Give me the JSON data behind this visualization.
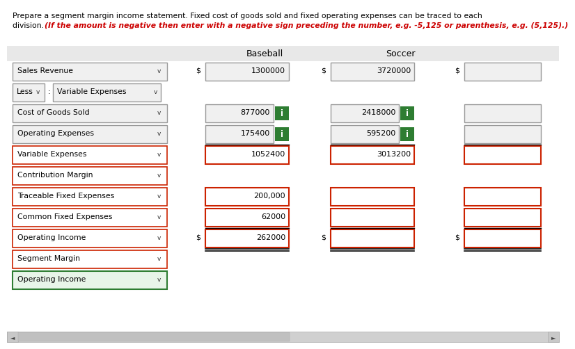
{
  "title_line1": "Prepare a segment margin income statement. Fixed cost of goods sold and fixed operating expenses can be traced to each",
  "title_line2_normal": "division. ",
  "title_line2_italic": "(If the amount is negative then enter with a negative sign preceding the number, e.g. -5,125 or parenthesis, e.g. (5,125).)",
  "col_headers": [
    "Baseball",
    "Soccer"
  ],
  "rows": [
    {
      "label": "Sales Revenue",
      "type": "normal",
      "border": "gray",
      "bg": "#f0f0f0",
      "dollar_baseball": true,
      "val_baseball": "1300000",
      "show_baseball": true,
      "dollar_soccer": true,
      "val_soccer": "3720000",
      "show_soccer": true,
      "dollar_total": true,
      "val_total": "",
      "show_total": true,
      "green_i_baseball": false,
      "green_i_soccer": false,
      "red_border_val": false
    },
    {
      "label": "Less",
      "type": "less_variable",
      "border": "gray",
      "bg": "#f0f0f0",
      "dollar_baseball": false,
      "val_baseball": "",
      "show_baseball": false,
      "dollar_soccer": false,
      "val_soccer": "",
      "show_soccer": false,
      "dollar_total": false,
      "val_total": "",
      "show_total": false,
      "green_i_baseball": false,
      "green_i_soccer": false,
      "red_border_val": false
    },
    {
      "label": "Cost of Goods Sold",
      "type": "normal",
      "border": "gray",
      "bg": "#f0f0f0",
      "dollar_baseball": false,
      "val_baseball": "877000",
      "show_baseball": true,
      "dollar_soccer": false,
      "val_soccer": "2418000",
      "show_soccer": true,
      "dollar_total": false,
      "val_total": "",
      "show_total": true,
      "green_i_baseball": true,
      "green_i_soccer": true,
      "red_border_val": false
    },
    {
      "label": "Operating Expenses",
      "type": "normal",
      "border": "gray",
      "bg": "#f0f0f0",
      "dollar_baseball": false,
      "val_baseball": "175400",
      "show_baseball": true,
      "dollar_soccer": false,
      "val_soccer": "595200",
      "show_soccer": true,
      "dollar_total": false,
      "val_total": "",
      "show_total": true,
      "green_i_baseball": true,
      "green_i_soccer": true,
      "red_border_val": false,
      "underline_below": true
    },
    {
      "label": "Variable Expenses",
      "type": "normal",
      "border": "red",
      "bg": "white",
      "dollar_baseball": false,
      "val_baseball": "1052400",
      "show_baseball": true,
      "dollar_soccer": false,
      "val_soccer": "3013200",
      "show_soccer": true,
      "dollar_total": false,
      "val_total": "",
      "show_total": true,
      "green_i_baseball": false,
      "green_i_soccer": false,
      "red_border_val": true
    },
    {
      "label": "Contribution Margin",
      "type": "normal",
      "border": "red",
      "bg": "white",
      "dollar_baseball": false,
      "val_baseball": "",
      "show_baseball": false,
      "dollar_soccer": false,
      "val_soccer": "",
      "show_soccer": false,
      "dollar_total": false,
      "val_total": "",
      "show_total": false,
      "green_i_baseball": false,
      "green_i_soccer": false,
      "red_border_val": false
    },
    {
      "label": "Traceable Fixed Expenses",
      "type": "normal",
      "border": "red",
      "bg": "white",
      "dollar_baseball": false,
      "val_baseball": "200,000",
      "show_baseball": true,
      "dollar_soccer": false,
      "val_soccer": "",
      "show_soccer": true,
      "dollar_total": false,
      "val_total": "",
      "show_total": true,
      "green_i_baseball": false,
      "green_i_soccer": false,
      "red_border_val": true
    },
    {
      "label": "Common Fixed Expenses",
      "type": "normal",
      "border": "red",
      "bg": "white",
      "dollar_baseball": false,
      "val_baseball": "62000",
      "show_baseball": true,
      "dollar_soccer": false,
      "val_soccer": "",
      "show_soccer": true,
      "dollar_total": false,
      "val_total": "",
      "show_total": true,
      "green_i_baseball": false,
      "green_i_soccer": false,
      "red_border_val": true,
      "underline_below": true
    },
    {
      "label": "Operating Income",
      "type": "normal",
      "border": "red",
      "bg": "white",
      "dollar_baseball": true,
      "val_baseball": "262000",
      "show_baseball": true,
      "dollar_soccer": true,
      "val_soccer": "",
      "show_soccer": true,
      "dollar_total": true,
      "val_total": "",
      "show_total": true,
      "green_i_baseball": false,
      "green_i_soccer": false,
      "red_border_val": true,
      "double_underline_below": true
    },
    {
      "label": "Segment Margin",
      "type": "normal",
      "border": "red",
      "bg": "white",
      "dollar_baseball": false,
      "val_baseball": "",
      "show_baseball": false,
      "dollar_soccer": false,
      "val_soccer": "",
      "show_soccer": false,
      "dollar_total": false,
      "val_total": "",
      "show_total": false,
      "green_i_baseball": false,
      "green_i_soccer": false,
      "red_border_val": false
    },
    {
      "label": "Operating Income",
      "type": "normal",
      "border": "green",
      "bg": "#e8f5e9",
      "dollar_baseball": false,
      "val_baseball": "",
      "show_baseball": false,
      "dollar_soccer": false,
      "val_soccer": "",
      "show_soccer": false,
      "dollar_total": false,
      "val_total": "",
      "show_total": false,
      "green_i_baseball": false,
      "green_i_soccer": false,
      "red_border_val": false
    }
  ],
  "bg_color": "#ffffff",
  "header_bg": "#e8e8e8",
  "gray_border": "#999999",
  "red_border_color": "#cc2200",
  "green_border_color": "#2e7d32",
  "green_fill": "#2e7d32",
  "scrollbar_bg": "#d0d0d0",
  "scrollbar_thumb": "#c0c0c0"
}
